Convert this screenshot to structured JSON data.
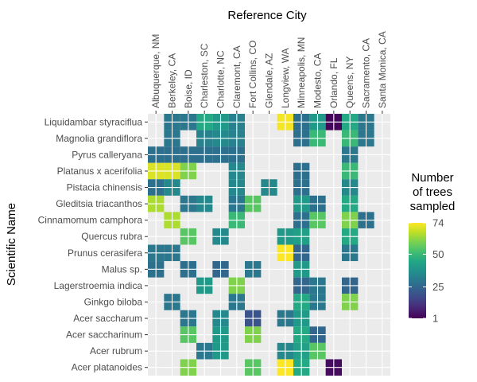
{
  "chart_data": {
    "type": "heatmap",
    "title": "Reference City",
    "xlabel": "Reference City",
    "ylabel": "Scientific Name",
    "x_axis_position": "top",
    "cities": [
      "Albuquerque, NM",
      "Berkeley, CA",
      "Boise, ID",
      "Charleston, SC",
      "Charlotte, NC",
      "Claremont, CA",
      "Fort Collins, CO",
      "Glendale, AZ",
      "Longview, WA",
      "Minneapolis, MN",
      "Modesto, CA",
      "Orlando, FL",
      "Queens, NY",
      "Sacramento, CA",
      "Santa Monica, CA"
    ],
    "species": [
      "Liquidambar styraciflua",
      "Magnolia grandiflora",
      "Pyrus calleryana",
      "Platanus x acerifolia",
      "Pistacia chinensis",
      "Gleditsia triacanthos",
      "Cinnamomum camphora",
      "Quercus rubra",
      "Prunus cerasifera",
      "Malus sp.",
      "Lagerstroemia indica",
      "Ginkgo biloba",
      "Acer saccharum",
      "Acer saccharinum",
      "Acer rubrum",
      "Acer platanoides"
    ],
    "values": [
      [
        null,
        30,
        30,
        45,
        40,
        33,
        null,
        null,
        73,
        28,
        40,
        2,
        45,
        30,
        null
      ],
      [
        null,
        30,
        null,
        33,
        35,
        33,
        null,
        null,
        null,
        28,
        50,
        null,
        50,
        30,
        null
      ],
      [
        28,
        28,
        28,
        28,
        28,
        28,
        null,
        null,
        null,
        null,
        null,
        null,
        30,
        null,
        null
      ],
      [
        70,
        70,
        60,
        null,
        null,
        35,
        null,
        null,
        null,
        28,
        null,
        null,
        50,
        null,
        null
      ],
      [
        28,
        35,
        null,
        null,
        null,
        35,
        null,
        35,
        null,
        28,
        null,
        null,
        35,
        null,
        null
      ],
      [
        65,
        null,
        30,
        35,
        null,
        30,
        55,
        null,
        null,
        40,
        28,
        null,
        45,
        null,
        null
      ],
      [
        null,
        65,
        null,
        null,
        null,
        50,
        null,
        null,
        null,
        28,
        55,
        null,
        60,
        28,
        null
      ],
      [
        null,
        null,
        55,
        null,
        35,
        null,
        null,
        null,
        40,
        42,
        null,
        null,
        45,
        null,
        null
      ],
      [
        30,
        30,
        null,
        null,
        null,
        null,
        null,
        null,
        74,
        25,
        null,
        null,
        30,
        null,
        null
      ],
      [
        28,
        null,
        28,
        null,
        25,
        null,
        30,
        null,
        null,
        40,
        null,
        null,
        null,
        null,
        null
      ],
      [
        null,
        null,
        null,
        40,
        null,
        60,
        null,
        null,
        null,
        25,
        30,
        null,
        25,
        null,
        null
      ],
      [
        null,
        30,
        null,
        null,
        null,
        30,
        null,
        null,
        null,
        45,
        30,
        null,
        60,
        null,
        null
      ],
      [
        null,
        null,
        30,
        null,
        35,
        null,
        20,
        null,
        30,
        40,
        null,
        null,
        null,
        null,
        null
      ],
      [
        null,
        null,
        55,
        null,
        40,
        null,
        60,
        null,
        null,
        45,
        25,
        null,
        null,
        null,
        null
      ],
      [
        null,
        null,
        null,
        30,
        40,
        null,
        null,
        null,
        35,
        42,
        55,
        null,
        null,
        null,
        null
      ],
      [
        null,
        null,
        60,
        null,
        null,
        null,
        55,
        null,
        74,
        45,
        null,
        3,
        null,
        null,
        null
      ]
    ],
    "legend": {
      "title_lines": [
        "Number",
        "of trees",
        "sampled"
      ],
      "ticks": [
        1,
        25,
        50,
        74
      ],
      "min": 1,
      "max": 74,
      "palette": "viridis",
      "placement": "right"
    },
    "na_color": "#ebebeb"
  }
}
